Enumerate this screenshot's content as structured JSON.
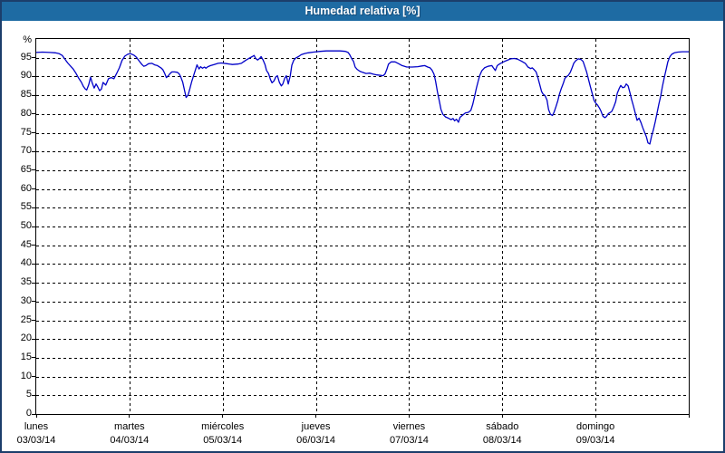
{
  "window": {
    "title": "Humedad relativa [%]",
    "titlebar_color": "#1e6ba3",
    "border_color": "#1c3e6b",
    "background": "#ffffff"
  },
  "chart_data": {
    "type": "line",
    "title": "Humedad relativa [%]",
    "ylabel": "%",
    "ylim": [
      0,
      100
    ],
    "yticks": [
      0,
      5,
      10,
      15,
      20,
      25,
      30,
      35,
      40,
      45,
      50,
      55,
      60,
      65,
      70,
      75,
      80,
      85,
      90,
      95
    ],
    "grid": {
      "style": "dashed",
      "color": "#000000",
      "horizontal_step": 5,
      "vertical_step_days": 1
    },
    "legend": "none",
    "x_axis": {
      "unit": "hours",
      "range_hours": [
        0,
        168
      ],
      "days": [
        {
          "name": "lunes",
          "date": "03/03/14"
        },
        {
          "name": "martes",
          "date": "04/03/14"
        },
        {
          "name": "miércoles",
          "date": "05/03/14"
        },
        {
          "name": "jueves",
          "date": "06/03/14"
        },
        {
          "name": "viernes",
          "date": "07/03/14"
        },
        {
          "name": "sábado",
          "date": "08/03/14"
        },
        {
          "name": "domingo",
          "date": "09/03/14"
        }
      ]
    },
    "series": [
      {
        "name": "Humedad relativa",
        "color": "#0000c8",
        "points": [
          [
            0,
            96.4
          ],
          [
            1.6,
            96.5
          ],
          [
            3.5,
            96.4
          ],
          [
            4.9,
            96.3
          ],
          [
            5.8,
            96.1
          ],
          [
            6.7,
            95.6
          ],
          [
            7.4,
            94.6
          ],
          [
            8.1,
            93.6
          ],
          [
            8.8,
            92.8
          ],
          [
            9.5,
            92
          ],
          [
            10.2,
            90.9
          ],
          [
            10.9,
            89.6
          ],
          [
            11.6,
            88.5
          ],
          [
            12.1,
            87.4
          ],
          [
            12.6,
            86.7
          ],
          [
            13,
            86.4
          ],
          [
            13.5,
            87.8
          ],
          [
            14,
            89.8
          ],
          [
            14.4,
            88.3
          ],
          [
            14.9,
            86.9
          ],
          [
            15.4,
            88
          ],
          [
            15.8,
            87.3
          ],
          [
            16.3,
            86.2
          ],
          [
            16.8,
            86.7
          ],
          [
            17.2,
            88.4
          ],
          [
            17.9,
            87.7
          ],
          [
            18.6,
            89.4
          ],
          [
            19.3,
            89.7
          ],
          [
            20,
            89.4
          ],
          [
            20.7,
            90.8
          ],
          [
            21.4,
            92.3
          ],
          [
            22.1,
            94.3
          ],
          [
            22.8,
            95.4
          ],
          [
            23.5,
            95.9
          ],
          [
            24.2,
            96.1
          ],
          [
            25.1,
            95.7
          ],
          [
            25.8,
            95.1
          ],
          [
            26.5,
            94.1
          ],
          [
            27.2,
            93.2
          ],
          [
            27.7,
            92.7
          ],
          [
            28.2,
            92.9
          ],
          [
            28.9,
            93.4
          ],
          [
            29.8,
            93.5
          ],
          [
            30.5,
            93.1
          ],
          [
            31.2,
            92.9
          ],
          [
            32.1,
            92.3
          ],
          [
            32.6,
            91.8
          ],
          [
            33,
            91
          ],
          [
            33.5,
            89.7
          ],
          [
            34,
            90.2
          ],
          [
            34.4,
            90.7
          ],
          [
            34.9,
            91.2
          ],
          [
            35.6,
            91.2
          ],
          [
            36.3,
            91.1
          ],
          [
            36.8,
            90.7
          ],
          [
            37.2,
            89.9
          ],
          [
            37.7,
            88.5
          ],
          [
            38.2,
            86.2
          ],
          [
            38.6,
            84.4
          ],
          [
            39.1,
            85.1
          ],
          [
            39.6,
            86.9
          ],
          [
            40,
            88.5
          ],
          [
            40.5,
            90.2
          ],
          [
            41,
            91.8
          ],
          [
            41.4,
            93.1
          ],
          [
            41.9,
            92
          ],
          [
            42.3,
            92.6
          ],
          [
            42.8,
            92.2
          ],
          [
            43.3,
            92.5
          ],
          [
            43.7,
            92.2
          ],
          [
            44.2,
            92.6
          ],
          [
            44.9,
            92.9
          ],
          [
            45.8,
            93.2
          ],
          [
            46.8,
            93.5
          ],
          [
            47.7,
            93.6
          ],
          [
            49.1,
            93.4
          ],
          [
            50.5,
            93.2
          ],
          [
            51.9,
            93.3
          ],
          [
            52.8,
            93.5
          ],
          [
            53.5,
            94
          ],
          [
            54.2,
            94.5
          ],
          [
            54.9,
            94.9
          ],
          [
            55.6,
            95.3
          ],
          [
            56.1,
            95.6
          ],
          [
            56.5,
            94.8
          ],
          [
            57,
            94.4
          ],
          [
            57.5,
            94.8
          ],
          [
            57.9,
            95.3
          ],
          [
            58.4,
            94.4
          ],
          [
            58.9,
            93.2
          ],
          [
            59.3,
            91.6
          ],
          [
            59.8,
            90.8
          ],
          [
            60.3,
            89.2
          ],
          [
            60.7,
            88.3
          ],
          [
            61.2,
            88.8
          ],
          [
            61.7,
            89.9
          ],
          [
            62.1,
            90.2
          ],
          [
            62.6,
            88.4
          ],
          [
            63.1,
            87.5
          ],
          [
            63.5,
            88
          ],
          [
            64,
            89.6
          ],
          [
            64.4,
            90.2
          ],
          [
            64.9,
            88
          ],
          [
            65.4,
            90.2
          ],
          [
            65.8,
            93
          ],
          [
            66.3,
            94.3
          ],
          [
            66.8,
            94.9
          ],
          [
            67.5,
            95.3
          ],
          [
            68.2,
            95.8
          ],
          [
            69.1,
            96.1
          ],
          [
            70,
            96.3
          ],
          [
            71.4,
            96.5
          ],
          [
            73.1,
            96.7
          ],
          [
            74.7,
            96.8
          ],
          [
            76.6,
            96.8
          ],
          [
            78.2,
            96.8
          ],
          [
            79.6,
            96.7
          ],
          [
            80.3,
            96.4
          ],
          [
            80.7,
            95.8
          ],
          [
            81.2,
            94.8
          ],
          [
            81.7,
            94
          ],
          [
            82.1,
            92.5
          ],
          [
            82.6,
            91.9
          ],
          [
            83.3,
            91.4
          ],
          [
            84,
            91.1
          ],
          [
            84.9,
            90.8
          ],
          [
            85.9,
            90.9
          ],
          [
            86.8,
            90.6
          ],
          [
            87.7,
            90.4
          ],
          [
            88.7,
            90.3
          ],
          [
            89.3,
            90.2
          ],
          [
            89.8,
            90.7
          ],
          [
            90.3,
            92
          ],
          [
            90.7,
            93.3
          ],
          [
            91.4,
            93.9
          ],
          [
            92.4,
            93.9
          ],
          [
            93.3,
            93.4
          ],
          [
            94.2,
            92.9
          ],
          [
            95.4,
            92.5
          ],
          [
            96.8,
            92.5
          ],
          [
            98.2,
            92.6
          ],
          [
            99.3,
            92.8
          ],
          [
            100,
            92.9
          ],
          [
            100.8,
            92.5
          ],
          [
            101.4,
            92.3
          ],
          [
            101.9,
            91.7
          ],
          [
            102.4,
            90.6
          ],
          [
            102.8,
            88.8
          ],
          [
            103.3,
            85.9
          ],
          [
            103.8,
            83.3
          ],
          [
            104.2,
            81.2
          ],
          [
            104.7,
            79.9
          ],
          [
            105.4,
            79.2
          ],
          [
            106.1,
            78.9
          ],
          [
            106.8,
            78.5
          ],
          [
            107.3,
            78.8
          ],
          [
            107.7,
            78.2
          ],
          [
            108.2,
            78.6
          ],
          [
            108.7,
            77.8
          ],
          [
            109.1,
            79.1
          ],
          [
            109.8,
            79.7
          ],
          [
            110.5,
            80.3
          ],
          [
            111.2,
            80.4
          ],
          [
            111.9,
            81
          ],
          [
            112.4,
            82.6
          ],
          [
            112.9,
            84.9
          ],
          [
            113.3,
            86.8
          ],
          [
            113.8,
            88.8
          ],
          [
            114.2,
            90.3
          ],
          [
            114.7,
            91.5
          ],
          [
            115.4,
            92.3
          ],
          [
            116.3,
            92.7
          ],
          [
            117.3,
            92.9
          ],
          [
            117.7,
            92.3
          ],
          [
            118.2,
            91.6
          ],
          [
            118.7,
            92.9
          ],
          [
            119.4,
            93.4
          ],
          [
            120.3,
            93.9
          ],
          [
            121.2,
            94.3
          ],
          [
            122.2,
            94.7
          ],
          [
            123.1,
            94.8
          ],
          [
            124,
            94.6
          ],
          [
            124.9,
            94.1
          ],
          [
            125.9,
            93.5
          ],
          [
            126.6,
            92.5
          ],
          [
            127.3,
            92.1
          ],
          [
            127.7,
            92.3
          ],
          [
            128.2,
            91.8
          ],
          [
            128.7,
            91.2
          ],
          [
            129.1,
            89.9
          ],
          [
            129.6,
            88
          ],
          [
            130.1,
            86
          ],
          [
            130.5,
            85.3
          ],
          [
            131,
            84.9
          ],
          [
            131.5,
            83.7
          ],
          [
            131.9,
            81.2
          ],
          [
            132.4,
            79.9
          ],
          [
            132.9,
            79.6
          ],
          [
            133.3,
            80.4
          ],
          [
            133.8,
            81.9
          ],
          [
            134.3,
            83.6
          ],
          [
            134.7,
            85.3
          ],
          [
            135.2,
            86.8
          ],
          [
            135.7,
            88.2
          ],
          [
            136.1,
            89.5
          ],
          [
            136.6,
            90
          ],
          [
            137,
            90.3
          ],
          [
            137.5,
            91.1
          ],
          [
            138,
            92.4
          ],
          [
            138.4,
            93.5
          ],
          [
            138.9,
            94.2
          ],
          [
            139.6,
            94.7
          ],
          [
            140.3,
            94.5
          ],
          [
            140.8,
            94
          ],
          [
            141.2,
            92.8
          ],
          [
            141.7,
            91.2
          ],
          [
            142.2,
            89.2
          ],
          [
            142.6,
            87.6
          ],
          [
            143.1,
            85.6
          ],
          [
            143.6,
            83.7
          ],
          [
            144,
            83
          ],
          [
            144.5,
            82.4
          ],
          [
            145,
            81.6
          ],
          [
            145.4,
            80.8
          ],
          [
            145.9,
            79.4
          ],
          [
            146.4,
            79
          ],
          [
            146.8,
            79.3
          ],
          [
            147.3,
            80.1
          ],
          [
            147.8,
            80.4
          ],
          [
            148.2,
            80.7
          ],
          [
            148.7,
            81.9
          ],
          [
            149.2,
            83.3
          ],
          [
            149.6,
            85.5
          ],
          [
            150.1,
            86.8
          ],
          [
            150.5,
            87.6
          ],
          [
            151,
            87
          ],
          [
            151.5,
            87.2
          ],
          [
            151.9,
            88
          ],
          [
            152.4,
            87.5
          ],
          [
            152.9,
            85.5
          ],
          [
            153.3,
            83.8
          ],
          [
            153.8,
            82
          ],
          [
            154.3,
            79.9
          ],
          [
            154.7,
            78.3
          ],
          [
            155.2,
            78.9
          ],
          [
            155.7,
            77.7
          ],
          [
            156.1,
            76.5
          ],
          [
            156.6,
            75.2
          ],
          [
            157.1,
            73.9
          ],
          [
            157.5,
            72.3
          ],
          [
            158,
            72
          ],
          [
            158.4,
            74
          ],
          [
            158.9,
            75.8
          ],
          [
            159.4,
            78
          ],
          [
            159.8,
            80.1
          ],
          [
            160.3,
            82.6
          ],
          [
            160.8,
            84.8
          ],
          [
            161.2,
            87.3
          ],
          [
            161.7,
            89.7
          ],
          [
            162.2,
            91.9
          ],
          [
            162.6,
            93.9
          ],
          [
            163.1,
            95.2
          ],
          [
            163.6,
            95.9
          ],
          [
            164.3,
            96.3
          ],
          [
            165.2,
            96.5
          ],
          [
            166.4,
            96.6
          ],
          [
            168,
            96.6
          ]
        ]
      }
    ]
  }
}
